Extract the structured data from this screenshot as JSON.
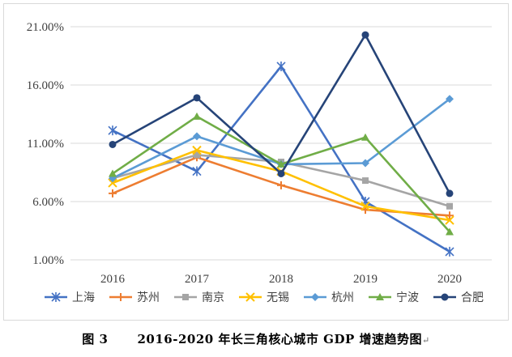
{
  "caption": {
    "figure_label": "图 3",
    "figure_title": "2016-2020 年长三角核心城市 GDP 增速趋势图",
    "end_mark": "↵"
  },
  "chart_data": {
    "type": "line",
    "title": "",
    "xlabel": "",
    "ylabel": "",
    "categories": [
      "2016",
      "2017",
      "2018",
      "2019",
      "2020"
    ],
    "y_ticks": [
      "1.00%",
      "6.00%",
      "11.00%",
      "16.00%",
      "21.00%"
    ],
    "ylim": [
      1,
      21
    ],
    "grid": "horizontal",
    "legend_position": "bottom",
    "series": [
      {
        "name": "上海",
        "color": "#4472c4",
        "marker": "star",
        "values": [
          12.1,
          8.6,
          17.6,
          6.0,
          1.7
        ]
      },
      {
        "name": "苏州",
        "color": "#ed7d31",
        "marker": "plus",
        "values": [
          6.7,
          9.8,
          7.4,
          5.3,
          4.8
        ]
      },
      {
        "name": "南京",
        "color": "#a5a5a5",
        "marker": "square",
        "values": [
          8.0,
          10.0,
          9.4,
          7.8,
          5.6
        ]
      },
      {
        "name": "无锡",
        "color": "#ffc000",
        "marker": "x",
        "values": [
          7.6,
          10.4,
          8.6,
          5.6,
          4.4
        ]
      },
      {
        "name": "杭州",
        "color": "#5b9bd5",
        "marker": "diamond",
        "values": [
          8.0,
          11.6,
          9.2,
          9.3,
          14.8
        ]
      },
      {
        "name": "宁波",
        "color": "#70ad47",
        "marker": "triangle",
        "values": [
          8.4,
          13.3,
          9.2,
          11.5,
          3.4
        ]
      },
      {
        "name": "合肥",
        "color": "#264478",
        "marker": "circle",
        "values": [
          10.9,
          14.9,
          8.4,
          20.3,
          6.7
        ]
      }
    ]
  }
}
